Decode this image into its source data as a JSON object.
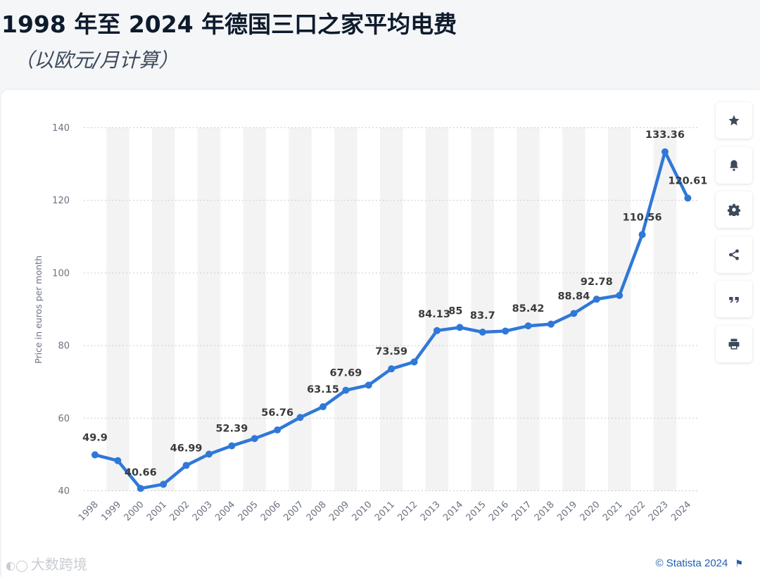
{
  "title": "1998 年至 2024 年德国三口之家平均电费",
  "subtitle": "（以欧元/月计算）",
  "credit": "© Statista 2024",
  "watermark": "大数跨境",
  "toolbar": [
    {
      "icon": "star-icon",
      "label": "favorite"
    },
    {
      "icon": "bell-icon",
      "label": "notification"
    },
    {
      "icon": "gear-icon",
      "label": "settings"
    },
    {
      "icon": "share-icon",
      "label": "share"
    },
    {
      "icon": "quote-icon",
      "label": "cite"
    },
    {
      "icon": "print-icon",
      "label": "print"
    }
  ],
  "colors": {
    "line": "#2f78d7",
    "band": "#f3f3f4",
    "grid": "#c9ccd2",
    "axis_text": "#6b7280",
    "label_text": "#3a3a3a"
  },
  "chart_data": {
    "type": "line",
    "title": "1998 年至 2024 年德国三口之家平均电费",
    "ylabel": "Price in euros per month",
    "xlabel": "",
    "ylim": [
      40,
      140
    ],
    "yticks": [
      40,
      60,
      80,
      100,
      120,
      140
    ],
    "grid": true,
    "categories": [
      "1998",
      "1999",
      "2000",
      "2001",
      "2002",
      "2003",
      "2004",
      "2005",
      "2006",
      "2007",
      "2008",
      "2009",
      "2010",
      "2011",
      "2012",
      "2013",
      "2014",
      "2015",
      "2016",
      "2017",
      "2018",
      "2019",
      "2020",
      "2021",
      "2022",
      "2023",
      "2024"
    ],
    "values": [
      49.9,
      48.3,
      40.66,
      41.8,
      46.99,
      50.1,
      52.39,
      54.4,
      56.76,
      60.2,
      63.15,
      67.69,
      69.1,
      73.59,
      75.5,
      84.13,
      85,
      83.7,
      84.0,
      85.42,
      85.9,
      88.84,
      92.78,
      93.8,
      110.56,
      133.36,
      120.61
    ],
    "data_labels": [
      {
        "category": "1998",
        "text": "49.9"
      },
      {
        "category": "2000",
        "text": "40.66"
      },
      {
        "category": "2002",
        "text": "46.99"
      },
      {
        "category": "2004",
        "text": "52.39"
      },
      {
        "category": "2006",
        "text": "56.76"
      },
      {
        "category": "2008",
        "text": "63.15"
      },
      {
        "category": "2009",
        "text": "67.69"
      },
      {
        "category": "2011",
        "text": "73.59"
      },
      {
        "category": "2013",
        "text": "84.13"
      },
      {
        "category": "2014",
        "text": "85"
      },
      {
        "category": "2015",
        "text": "83.7"
      },
      {
        "category": "2017",
        "text": "85.42"
      },
      {
        "category": "2019",
        "text": "88.84"
      },
      {
        "category": "2020",
        "text": "92.78"
      },
      {
        "category": "2022",
        "text": "110.56"
      },
      {
        "category": "2023",
        "text": "133.36"
      },
      {
        "category": "2024",
        "text": "120.61"
      }
    ]
  }
}
